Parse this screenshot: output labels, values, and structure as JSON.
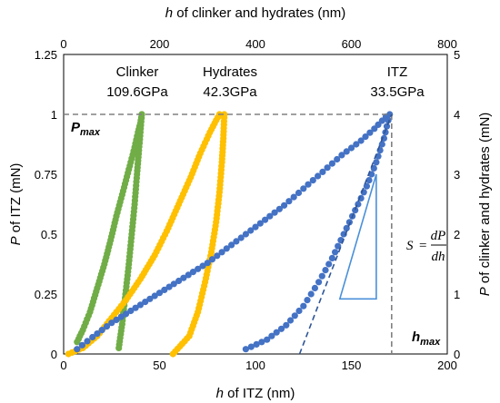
{
  "chart_data": {
    "type": "scatter",
    "axes": {
      "bottom": {
        "label_var": "h",
        "label_rest": " of ITZ (nm)",
        "min": 0,
        "max": 200,
        "ticks": [
          "0",
          "50",
          "100",
          "150",
          "200"
        ]
      },
      "top": {
        "label_var": "h",
        "label_rest": " of clinker and hydrates (nm)",
        "min": 0,
        "max": 800,
        "ticks": [
          "0",
          "200",
          "400",
          "600",
          "800"
        ]
      },
      "left": {
        "label_var": "P",
        "label_rest": " of ITZ (mN)",
        "min": 0,
        "max": 1.25,
        "ticks": [
          "0",
          "0.25",
          "0.5",
          "0.75",
          "1",
          "1.25"
        ]
      },
      "right": {
        "label_var": "P",
        "label_rest": " of clinker and hydrates (mN)",
        "min": 0,
        "max": 5,
        "ticks": [
          "0",
          "1",
          "2",
          "3",
          "4",
          "5"
        ]
      }
    },
    "grid": false,
    "series": [
      {
        "name": "Clinker",
        "modulus": "109.6GPa",
        "axes": "top-right",
        "color": "#70ad47",
        "loading": [
          [
            28,
            0.2
          ],
          [
            40,
            0.4
          ],
          [
            55,
            0.7
          ],
          [
            70,
            1.1
          ],
          [
            85,
            1.5
          ],
          [
            98,
            1.9
          ],
          [
            110,
            2.3
          ],
          [
            120,
            2.6
          ],
          [
            130,
            2.9
          ],
          [
            140,
            3.2
          ],
          [
            148,
            3.45
          ],
          [
            155,
            3.7
          ],
          [
            160,
            3.85
          ],
          [
            163,
            4.0
          ]
        ],
        "unloading": [
          [
            163,
            4.0
          ],
          [
            160,
            3.7
          ],
          [
            157,
            3.4
          ],
          [
            153,
            3.0
          ],
          [
            148,
            2.5
          ],
          [
            142,
            2.0
          ],
          [
            136,
            1.5
          ],
          [
            129,
            1.0
          ],
          [
            122,
            0.5
          ],
          [
            115,
            0.1
          ]
        ]
      },
      {
        "name": "Hydrates",
        "modulus": "42.3GPa",
        "axes": "top-right",
        "color": "#ffc000",
        "loading": [
          [
            10,
            0.0
          ],
          [
            40,
            0.1
          ],
          [
            70,
            0.3
          ],
          [
            100,
            0.6
          ],
          [
            130,
            0.9
          ],
          [
            160,
            1.25
          ],
          [
            190,
            1.65
          ],
          [
            215,
            2.05
          ],
          [
            240,
            2.5
          ],
          [
            265,
            2.95
          ],
          [
            285,
            3.35
          ],
          [
            305,
            3.7
          ],
          [
            318,
            3.9
          ],
          [
            325,
            4.0
          ]
        ],
        "unloading": [
          [
            335,
            4.0
          ],
          [
            333,
            3.6
          ],
          [
            330,
            3.2
          ],
          [
            325,
            2.7
          ],
          [
            318,
            2.2
          ],
          [
            308,
            1.7
          ],
          [
            295,
            1.2
          ],
          [
            280,
            0.7
          ],
          [
            262,
            0.3
          ],
          [
            228,
            0.0
          ]
        ]
      },
      {
        "name": "ITZ",
        "modulus": "33.5GPa",
        "axes": "bottom-left",
        "color": "#4472c4",
        "loading": [
          [
            7,
            0.02
          ],
          [
            15,
            0.07
          ],
          [
            25,
            0.13
          ],
          [
            35,
            0.18
          ],
          [
            45,
            0.23
          ],
          [
            55,
            0.28
          ],
          [
            65,
            0.33
          ],
          [
            75,
            0.38
          ],
          [
            85,
            0.44
          ],
          [
            95,
            0.5
          ],
          [
            105,
            0.56
          ],
          [
            115,
            0.62
          ],
          [
            125,
            0.69
          ],
          [
            135,
            0.76
          ],
          [
            145,
            0.83
          ],
          [
            155,
            0.89
          ],
          [
            162,
            0.94
          ],
          [
            168,
            0.99
          ]
        ],
        "unloading": [
          [
            170,
            1.0
          ],
          [
            167,
            0.9
          ],
          [
            163,
            0.8
          ],
          [
            158,
            0.7
          ],
          [
            152,
            0.6
          ],
          [
            146,
            0.5
          ],
          [
            140,
            0.4
          ],
          [
            133,
            0.3
          ],
          [
            125,
            0.2
          ],
          [
            116,
            0.12
          ],
          [
            106,
            0.06
          ],
          [
            95,
            0.02
          ]
        ]
      }
    ],
    "annotations": {
      "pmax": {
        "main": "P",
        "sub": "max",
        "y": 1
      },
      "hmax": {
        "main": "h",
        "sub": "max",
        "x": 171
      },
      "slope_formula": {
        "lhs": "S",
        "num": "dP",
        "den": "dh"
      },
      "tangent_line": {
        "x_start": 123,
        "y_start": 0,
        "x_end": 171,
        "y_end": 1
      },
      "slope_triangle": {
        "x1": 144,
        "y1": 0.23,
        "x2": 163,
        "y2": 0.23,
        "x3": 163,
        "y3": 0.75
      }
    },
    "colors": {
      "reference_line": "#808080",
      "tangent": "#2f5597",
      "triangle": "#4a90d9"
    }
  }
}
